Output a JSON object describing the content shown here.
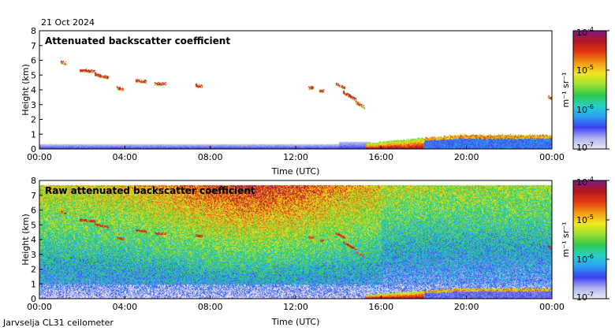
{
  "header": {
    "date": "21 Oct 2024"
  },
  "footer": {
    "instrument": "Jarvselja CL31 ceilometer"
  },
  "colormap": {
    "colors": [
      "#ecebf7",
      "#b0b2f0",
      "#3c3ff0",
      "#2ba0f5",
      "#27d0c8",
      "#2ec84a",
      "#9be032",
      "#f0e820",
      "#f39a16",
      "#e23a14",
      "#b5161e",
      "#7a1a86"
    ]
  },
  "chart_data": [
    {
      "type": "heatmap",
      "title": "Attenuated backscatter coefficient",
      "xlabel": "Time (UTC)",
      "ylabel": "Height (km)",
      "x_ticks": [
        "00:00",
        "04:00",
        "08:00",
        "12:00",
        "16:00",
        "20:00",
        "00:00"
      ],
      "y_ticks": [
        "0",
        "1",
        "2",
        "3",
        "4",
        "5",
        "6",
        "7",
        "8"
      ],
      "xlim_hours": [
        0,
        24
      ],
      "ylim_km": [
        0,
        8
      ],
      "colorbar": {
        "label": "m⁻¹ sr⁻¹",
        "scale": "log",
        "range": [
          1e-07,
          0.0001
        ],
        "ticks": [
          {
            "base": "10",
            "exp": "-4"
          },
          {
            "base": "10",
            "exp": "-5"
          },
          {
            "base": "10",
            "exp": "-6"
          },
          {
            "base": "10",
            "exp": "-7"
          }
        ]
      },
      "features": {
        "boundary_layer_km": 0.3,
        "high_cloud_segments": [
          {
            "t0": 1.0,
            "t1": 1.2,
            "h0": 5.85,
            "h1": 5.75,
            "intensity": 0.92
          },
          {
            "t0": 1.9,
            "t1": 2.6,
            "h0": 5.3,
            "h1": 5.2,
            "intensity": 0.92
          },
          {
            "t0": 2.6,
            "t1": 3.2,
            "h0": 5.0,
            "h1": 4.8,
            "intensity": 0.9
          },
          {
            "t0": 3.6,
            "t1": 3.9,
            "h0": 4.1,
            "h1": 4.0,
            "intensity": 0.9
          },
          {
            "t0": 4.5,
            "t1": 5.0,
            "h0": 4.6,
            "h1": 4.5,
            "intensity": 0.9
          },
          {
            "t0": 5.4,
            "t1": 5.9,
            "h0": 4.4,
            "h1": 4.4,
            "intensity": 0.9
          },
          {
            "t0": 7.3,
            "t1": 7.6,
            "h0": 4.25,
            "h1": 4.2,
            "intensity": 0.92
          },
          {
            "t0": 12.6,
            "t1": 12.8,
            "h0": 4.1,
            "h1": 4.1,
            "intensity": 0.9
          },
          {
            "t0": 13.1,
            "t1": 13.3,
            "h0": 3.9,
            "h1": 3.9,
            "intensity": 0.9
          },
          {
            "t0": 13.9,
            "t1": 14.3,
            "h0": 4.4,
            "h1": 4.1,
            "intensity": 0.9
          },
          {
            "t0": 14.2,
            "t1": 14.8,
            "h0": 3.8,
            "h1": 3.3,
            "intensity": 0.92
          },
          {
            "t0": 14.8,
            "t1": 15.2,
            "h0": 3.1,
            "h1": 2.8,
            "intensity": 0.85
          },
          {
            "t0": 23.8,
            "t1": 24.0,
            "h0": 3.5,
            "h1": 3.4,
            "intensity": 0.92
          }
        ],
        "low_cloud_start_hour": 15.3,
        "low_cloud_end_hour": 24
      }
    },
    {
      "type": "heatmap",
      "title": "Raw attenuated backscatter coefficient",
      "xlabel": "Time (UTC)",
      "ylabel": "Height (km)",
      "x_ticks": [
        "00:00",
        "04:00",
        "08:00",
        "12:00",
        "16:00",
        "20:00",
        "00:00"
      ],
      "y_ticks": [
        "0",
        "1",
        "2",
        "3",
        "4",
        "5",
        "6",
        "7",
        "8"
      ],
      "xlim_hours": [
        0,
        24
      ],
      "ylim_km": [
        0,
        8
      ],
      "colorbar": {
        "label": "m⁻¹ sr⁻¹",
        "scale": "log",
        "range": [
          1e-07,
          0.0001
        ],
        "ticks": [
          {
            "base": "10",
            "exp": "-4"
          },
          {
            "base": "10",
            "exp": "-5"
          },
          {
            "base": "10",
            "exp": "-6"
          },
          {
            "base": "10",
            "exp": "-7"
          }
        ]
      }
    }
  ]
}
